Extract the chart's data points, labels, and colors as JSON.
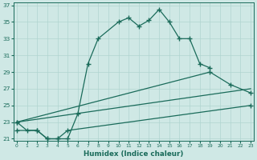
{
  "xlabel": "Humidex (Indice chaleur)",
  "bg_color": "#cfe8e5",
  "grid_color": "#b0d4d0",
  "line_color": "#1a6b5a",
  "xlim": [
    0,
    23
  ],
  "ylim": [
    21,
    37
  ],
  "yticks": [
    21,
    23,
    25,
    27,
    29,
    31,
    33,
    35,
    37
  ],
  "xticks": [
    0,
    1,
    2,
    3,
    4,
    5,
    6,
    7,
    8,
    9,
    10,
    11,
    12,
    13,
    14,
    15,
    16,
    17,
    18,
    19,
    20,
    21,
    22,
    23
  ],
  "series": [
    {
      "x": [
        0,
        1,
        2,
        3,
        4,
        5,
        6,
        7,
        8,
        10,
        11,
        12,
        13,
        14,
        15,
        16,
        17,
        18,
        19
      ],
      "y": [
        23,
        22,
        22,
        21,
        21,
        21,
        24,
        30,
        33,
        35,
        35.5,
        34.5,
        35.2,
        36.5,
        35,
        33,
        33,
        30,
        29.5
      ]
    },
    {
      "x": [
        0,
        19,
        21,
        23
      ],
      "y": [
        23,
        29,
        27.5,
        26.5
      ]
    },
    {
      "x": [
        0,
        23
      ],
      "y": [
        23,
        27
      ]
    },
    {
      "x": [
        0,
        2,
        3,
        4,
        5,
        23
      ],
      "y": [
        22,
        22,
        21,
        21,
        22,
        25
      ]
    }
  ]
}
